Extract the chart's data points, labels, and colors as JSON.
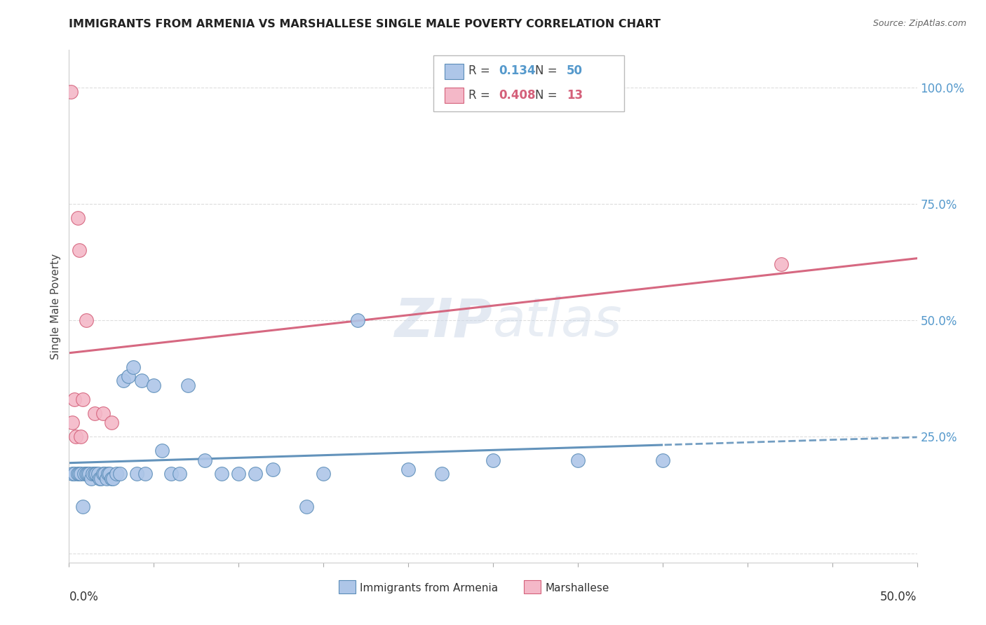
{
  "title": "IMMIGRANTS FROM ARMENIA VS MARSHALLESE SINGLE MALE POVERTY CORRELATION CHART",
  "source": "Source: ZipAtlas.com",
  "ylabel": "Single Male Poverty",
  "xlim": [
    0.0,
    0.5
  ],
  "ylim": [
    -0.02,
    1.08
  ],
  "legend1_R": "0.134",
  "legend1_N": "50",
  "legend2_R": "0.408",
  "legend2_N": "13",
  "armenia_color": "#aec6e8",
  "marshallese_color": "#f4b8c8",
  "armenia_edge_color": "#5b8db8",
  "marshallese_edge_color": "#d4607a",
  "armenia_line_color": "#5b8db8",
  "marshallese_line_color": "#d4607a",
  "grid_color": "#dddddd",
  "watermark_color": "#ccd8e8",
  "armenia_x": [
    0.002,
    0.003,
    0.005,
    0.006,
    0.007,
    0.008,
    0.009,
    0.01,
    0.011,
    0.012,
    0.013,
    0.014,
    0.015,
    0.016,
    0.017,
    0.018,
    0.019,
    0.02,
    0.021,
    0.022,
    0.023,
    0.024,
    0.025,
    0.026,
    0.028,
    0.03,
    0.032,
    0.035,
    0.038,
    0.04,
    0.043,
    0.045,
    0.05,
    0.055,
    0.06,
    0.065,
    0.07,
    0.08,
    0.09,
    0.1,
    0.11,
    0.12,
    0.14,
    0.15,
    0.17,
    0.2,
    0.22,
    0.25,
    0.3,
    0.35
  ],
  "armenia_y": [
    0.17,
    0.17,
    0.17,
    0.17,
    0.17,
    0.1,
    0.17,
    0.17,
    0.17,
    0.17,
    0.16,
    0.17,
    0.17,
    0.17,
    0.17,
    0.16,
    0.16,
    0.17,
    0.17,
    0.16,
    0.17,
    0.17,
    0.16,
    0.16,
    0.17,
    0.17,
    0.37,
    0.38,
    0.4,
    0.17,
    0.37,
    0.17,
    0.36,
    0.22,
    0.17,
    0.17,
    0.36,
    0.2,
    0.17,
    0.17,
    0.17,
    0.18,
    0.1,
    0.17,
    0.5,
    0.18,
    0.17,
    0.2,
    0.2,
    0.2
  ],
  "marshallese_x": [
    0.001,
    0.002,
    0.003,
    0.004,
    0.005,
    0.006,
    0.007,
    0.008,
    0.01,
    0.015,
    0.02,
    0.025,
    0.42
  ],
  "marshallese_y": [
    0.99,
    0.28,
    0.33,
    0.25,
    0.72,
    0.65,
    0.25,
    0.33,
    0.5,
    0.3,
    0.3,
    0.28,
    0.62
  ],
  "yticks": [
    0.0,
    0.25,
    0.5,
    0.75,
    1.0
  ],
  "xticks": [
    0.0,
    0.05,
    0.1,
    0.15,
    0.2,
    0.25,
    0.3,
    0.35,
    0.4,
    0.45,
    0.5
  ]
}
